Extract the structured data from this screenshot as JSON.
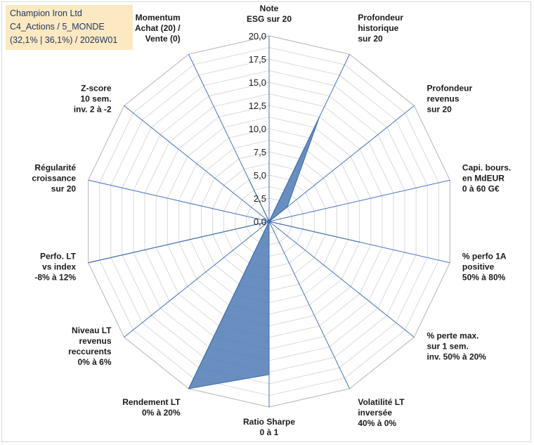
{
  "title_box": {
    "line1": "Champion Iron Ltd",
    "line2": "C4_Actions / 5_MONDE",
    "line3": "(32,1% | 36,1%) / 2026W01",
    "background": "#fde9c1"
  },
  "chart_data": {
    "type": "radar",
    "rmax": 20,
    "ticks": [
      "0,0",
      "2,5",
      "5,0",
      "7,5",
      "10,0",
      "12,5",
      "15,0",
      "17,5",
      "20,0"
    ],
    "tick_values": [
      0,
      2.5,
      5,
      7.5,
      10,
      12.5,
      15,
      17.5,
      20
    ],
    "grid": true,
    "axes": [
      {
        "label": [
          "Note",
          "ESG sur 20"
        ]
      },
      {
        "label": [
          "Profondeur",
          "historique",
          "sur 20"
        ]
      },
      {
        "label": [
          "Profondeur",
          "revenus",
          "sur 20"
        ]
      },
      {
        "label": [
          "Capi. bours.",
          "en MdEUR",
          "0 à 60 G€"
        ]
      },
      {
        "label": [
          "% perfo 1A",
          "positive",
          "50% à 80%"
        ]
      },
      {
        "label": [
          "% perte max.",
          "sur 1 sem.",
          "inv. 50% à 20%"
        ]
      },
      {
        "label": [
          "Volatilité LT",
          "inversée",
          "40% à 0%"
        ]
      },
      {
        "label": [
          "Ratio Sharpe",
          "0 à 1"
        ]
      },
      {
        "label": [
          "Rendement LT",
          "0% à 20%"
        ]
      },
      {
        "label": [
          "Niveau LT",
          "revenus",
          "reccurents",
          "0% à 6%"
        ]
      },
      {
        "label": [
          "Perfo. LT",
          "vs index",
          "-8% à 12%"
        ]
      },
      {
        "label": [
          "Régularité",
          "croissance",
          "sur 20"
        ]
      },
      {
        "label": [
          "Z-score",
          "10 sem.",
          "inv. 2 à -2"
        ]
      },
      {
        "label": [
          "Momentum",
          "Achat (20) /",
          "Vente (0)"
        ]
      }
    ],
    "series": [
      {
        "values": [
          0,
          12.5,
          2.5,
          0,
          10,
          0,
          0,
          16.5,
          20,
          0,
          20,
          0,
          0,
          5
        ]
      }
    ],
    "colors": {
      "fill": "#4f7ab5",
      "stroke": "#3a6aa8",
      "axis_line": "#4472c4",
      "grid": "#d0d0d0"
    }
  }
}
